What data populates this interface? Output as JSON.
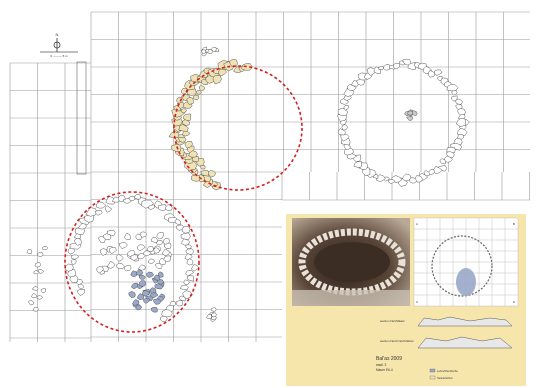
{
  "north_arrow": {
    "symbol": "N"
  },
  "scale_bar": {
    "label": "0 ——— 5 m"
  },
  "inset": {
    "title": "Bal'as 2009",
    "line2": "eastl. 3",
    "line3": "Mauer E6-4",
    "section_label_1": "section North/East",
    "section_label_2": "section North North/West",
    "legend_1": "Lehm/Ofen/Asche",
    "legend_2": "Steine/Schutt",
    "corner_a": "A",
    "corner_b": "B",
    "corner_c": "C",
    "corner_d": "D"
  },
  "colors": {
    "grid": "#9a9a9a",
    "stone_outline": "#555555",
    "stone_fill_yellow": "#efe2b4",
    "stone_fill_blue": "#9aa9c9",
    "dashed_circle": "#d32020",
    "inset_background": "#f6e6ac",
    "photo_dark": "#4a3b30",
    "photo_light": "#d8cfc2"
  }
}
